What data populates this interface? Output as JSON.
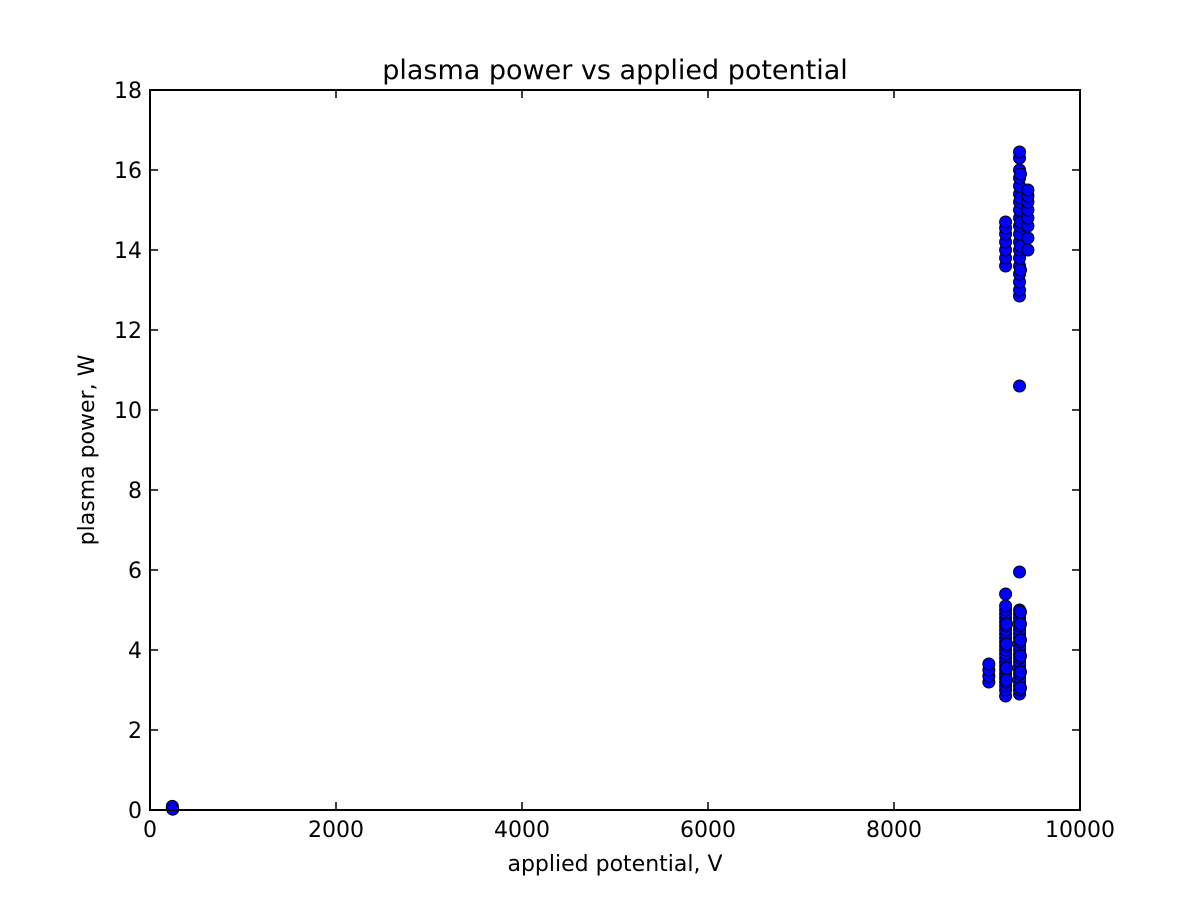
{
  "chart_data": {
    "type": "scatter",
    "title": "plasma power vs applied potential",
    "xlabel": "applied potential, V",
    "ylabel": "plasma power, W",
    "xlim": [
      0,
      10000
    ],
    "ylim": [
      0,
      18
    ],
    "xticks": [
      0,
      2000,
      4000,
      6000,
      8000,
      10000
    ],
    "yticks": [
      0,
      2,
      4,
      6,
      8,
      10,
      12,
      14,
      16,
      18
    ],
    "grid": false,
    "legend": "none",
    "marker": "circle",
    "colors": {
      "marker_fill": "#0000ff",
      "marker_edge": "#000000",
      "axes": "#000000"
    },
    "series": [
      {
        "points": [
          [
            240,
            0.05
          ],
          [
            240,
            0.09
          ],
          [
            245,
            0.02
          ],
          [
            9020,
            3.2
          ],
          [
            9020,
            3.35
          ],
          [
            9020,
            3.5
          ],
          [
            9020,
            3.65
          ],
          [
            9200,
            2.85
          ],
          [
            9200,
            3.0
          ],
          [
            9200,
            3.1
          ],
          [
            9200,
            3.2
          ],
          [
            9200,
            3.3
          ],
          [
            9200,
            3.4
          ],
          [
            9200,
            3.5
          ],
          [
            9200,
            3.6
          ],
          [
            9200,
            3.7
          ],
          [
            9200,
            3.8
          ],
          [
            9200,
            3.9
          ],
          [
            9200,
            4.0
          ],
          [
            9200,
            4.1
          ],
          [
            9200,
            4.2
          ],
          [
            9200,
            4.3
          ],
          [
            9200,
            4.4
          ],
          [
            9200,
            4.5
          ],
          [
            9200,
            4.6
          ],
          [
            9200,
            4.7
          ],
          [
            9200,
            4.8
          ],
          [
            9200,
            4.9
          ],
          [
            9200,
            5.0
          ],
          [
            9200,
            5.1
          ],
          [
            9200,
            5.4
          ],
          [
            9210,
            3.25
          ],
          [
            9210,
            3.55
          ],
          [
            9210,
            4.15
          ],
          [
            9210,
            4.65
          ],
          [
            9200,
            13.6
          ],
          [
            9200,
            13.8
          ],
          [
            9200,
            14.0
          ],
          [
            9200,
            14.2
          ],
          [
            9200,
            14.4
          ],
          [
            9200,
            14.55
          ],
          [
            9200,
            14.7
          ],
          [
            9350,
            2.9
          ],
          [
            9350,
            3.0
          ],
          [
            9350,
            3.1
          ],
          [
            9350,
            3.2
          ],
          [
            9350,
            3.3
          ],
          [
            9350,
            3.4
          ],
          [
            9350,
            3.5
          ],
          [
            9350,
            3.6
          ],
          [
            9350,
            3.7
          ],
          [
            9350,
            3.8
          ],
          [
            9350,
            3.9
          ],
          [
            9350,
            4.0
          ],
          [
            9350,
            4.1
          ],
          [
            9350,
            4.2
          ],
          [
            9350,
            4.3
          ],
          [
            9350,
            4.4
          ],
          [
            9350,
            4.5
          ],
          [
            9350,
            4.6
          ],
          [
            9350,
            4.7
          ],
          [
            9350,
            4.8
          ],
          [
            9350,
            4.9
          ],
          [
            9350,
            5.0
          ],
          [
            9360,
            3.05
          ],
          [
            9360,
            3.45
          ],
          [
            9360,
            3.85
          ],
          [
            9360,
            4.25
          ],
          [
            9360,
            4.65
          ],
          [
            9360,
            4.95
          ],
          [
            9350,
            5.95
          ],
          [
            9350,
            10.6
          ],
          [
            9350,
            12.85
          ],
          [
            9350,
            13.0
          ],
          [
            9350,
            13.2
          ],
          [
            9350,
            13.4
          ],
          [
            9350,
            13.6
          ],
          [
            9350,
            13.8
          ],
          [
            9350,
            14.0
          ],
          [
            9350,
            14.2
          ],
          [
            9350,
            14.4
          ],
          [
            9350,
            14.6
          ],
          [
            9350,
            14.8
          ],
          [
            9350,
            15.0
          ],
          [
            9350,
            15.2
          ],
          [
            9350,
            15.4
          ],
          [
            9350,
            15.6
          ],
          [
            9350,
            15.8
          ],
          [
            9350,
            16.0
          ],
          [
            9350,
            16.3
          ],
          [
            9350,
            16.45
          ],
          [
            9360,
            13.5
          ],
          [
            9360,
            14.1
          ],
          [
            9360,
            14.7
          ],
          [
            9360,
            15.3
          ],
          [
            9360,
            15.9
          ],
          [
            9440,
            14.0
          ],
          [
            9440,
            14.3
          ],
          [
            9440,
            14.6
          ],
          [
            9440,
            14.8
          ],
          [
            9440,
            15.0
          ],
          [
            9440,
            15.2
          ],
          [
            9440,
            15.35
          ],
          [
            9440,
            15.5
          ]
        ]
      }
    ]
  }
}
